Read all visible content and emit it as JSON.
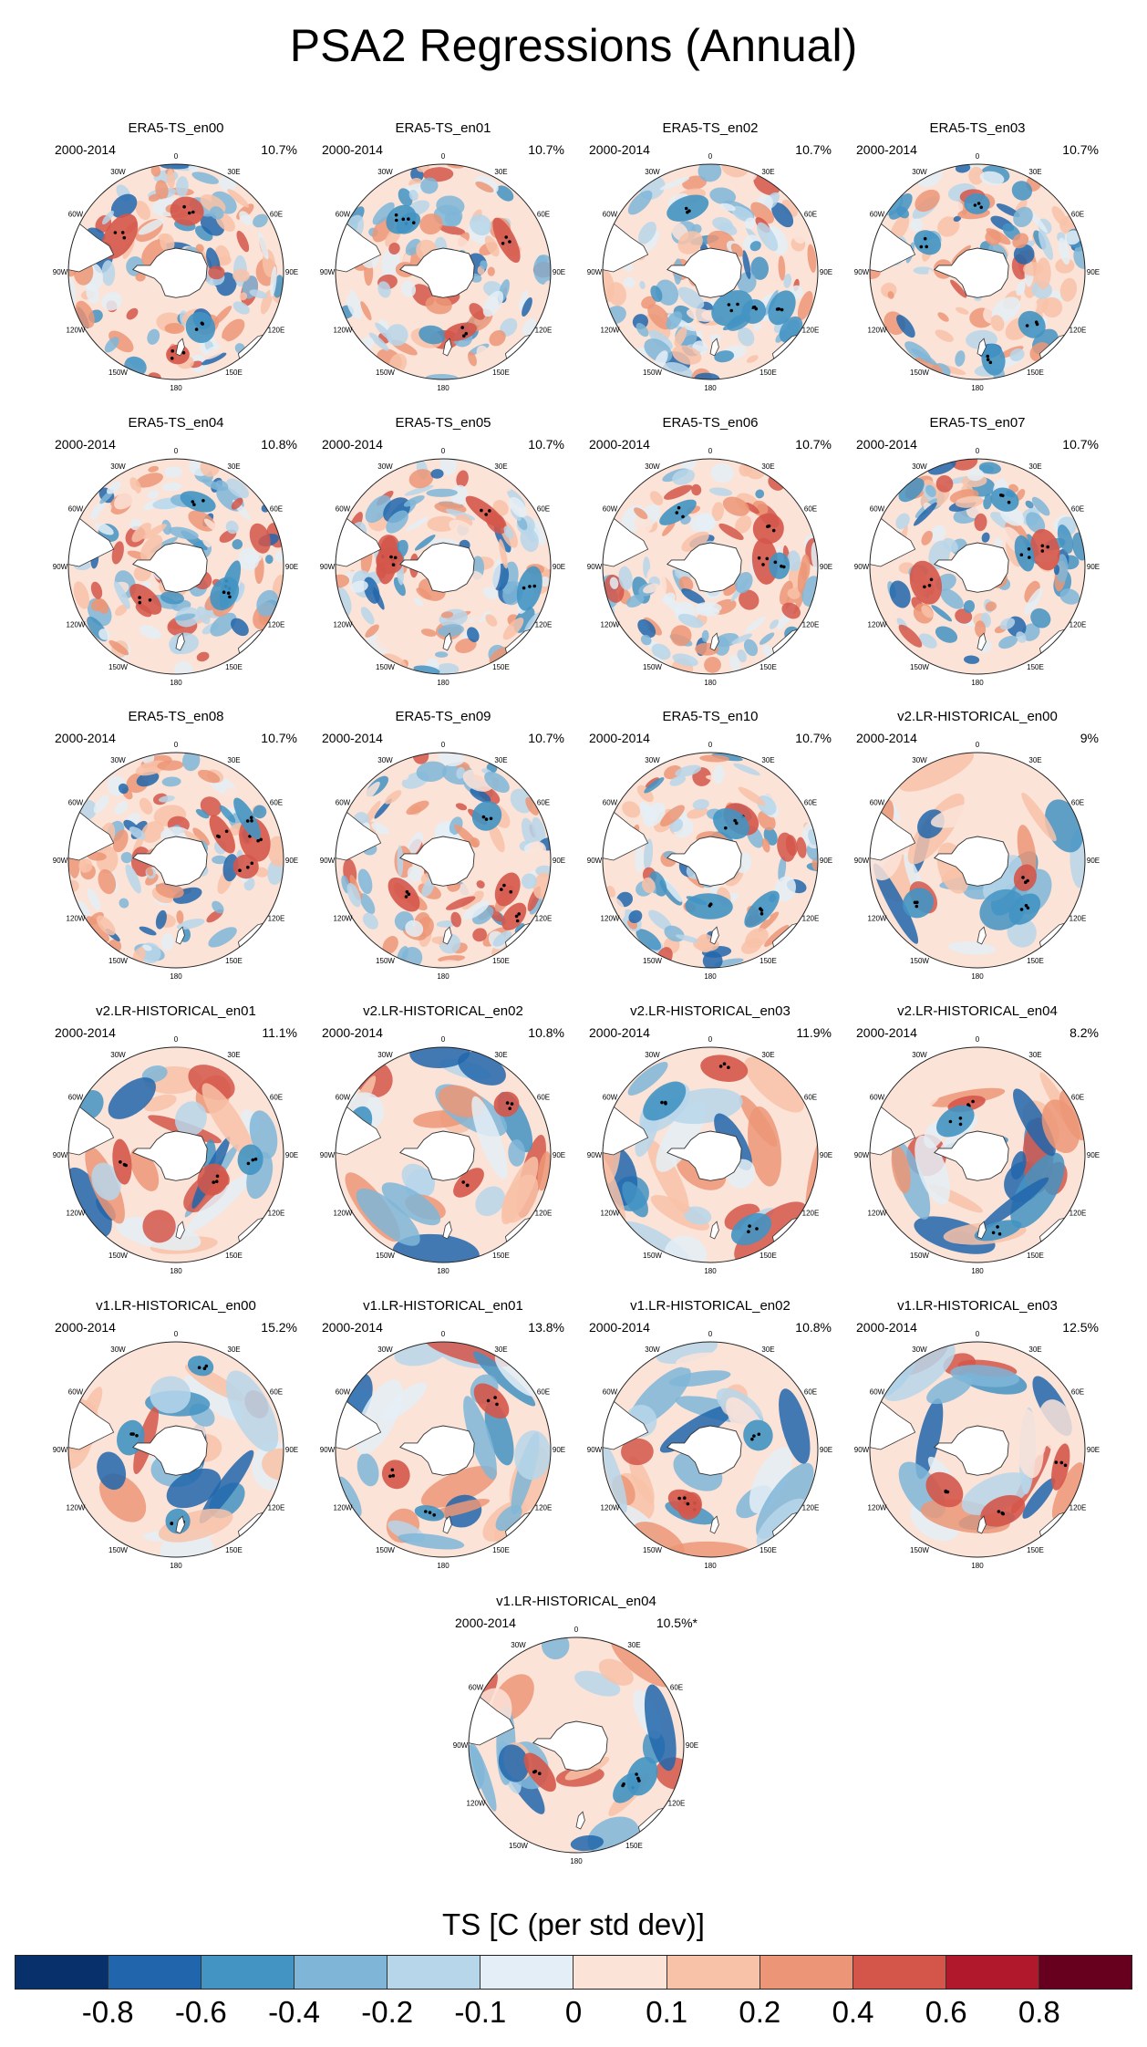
{
  "chart_data": {
    "type": "heatmap",
    "title": "PSA2 Regressions (Annual)",
    "colorbar_label": "TS [C (per std dev)]",
    "levels": [
      "-0.8",
      "-0.6",
      "-0.4",
      "-0.2",
      "-0.1",
      "0",
      "0.1",
      "0.2",
      "0.4",
      "0.6",
      "0.8"
    ],
    "colors": [
      "#08306b",
      "#2166ac",
      "#4393c3",
      "#7fb6d8",
      "#b7d6ea",
      "#e4eef6",
      "#fbe3d8",
      "#f8c2a8",
      "#ec9677",
      "#d4564a",
      "#b2182b",
      "#67001f"
    ],
    "longitude_labels": [
      "0",
      "30E",
      "60E",
      "90E",
      "120E",
      "150E",
      "180",
      "150W",
      "120W",
      "90W",
      "60W",
      "30W"
    ],
    "panels": [
      {
        "title": "ERA5-TS_en00",
        "period": "2000-2014",
        "pct": "10.7%"
      },
      {
        "title": "ERA5-TS_en01",
        "period": "2000-2014",
        "pct": "10.7%"
      },
      {
        "title": "ERA5-TS_en02",
        "period": "2000-2014",
        "pct": "10.7%"
      },
      {
        "title": "ERA5-TS_en03",
        "period": "2000-2014",
        "pct": "10.7%"
      },
      {
        "title": "ERA5-TS_en04",
        "period": "2000-2014",
        "pct": "10.8%"
      },
      {
        "title": "ERA5-TS_en05",
        "period": "2000-2014",
        "pct": "10.7%"
      },
      {
        "title": "ERA5-TS_en06",
        "period": "2000-2014",
        "pct": "10.7%"
      },
      {
        "title": "ERA5-TS_en07",
        "period": "2000-2014",
        "pct": "10.7%"
      },
      {
        "title": "ERA5-TS_en08",
        "period": "2000-2014",
        "pct": "10.7%"
      },
      {
        "title": "ERA5-TS_en09",
        "period": "2000-2014",
        "pct": "10.7%"
      },
      {
        "title": "ERA5-TS_en10",
        "period": "2000-2014",
        "pct": "10.7%"
      },
      {
        "title": "v2.LR-HISTORICAL_en00",
        "period": "2000-2014",
        "pct": "9%"
      },
      {
        "title": "v2.LR-HISTORICAL_en01",
        "period": "2000-2014",
        "pct": "11.1%"
      },
      {
        "title": "v2.LR-HISTORICAL_en02",
        "period": "2000-2014",
        "pct": "10.8%"
      },
      {
        "title": "v2.LR-HISTORICAL_en03",
        "period": "2000-2014",
        "pct": "11.9%"
      },
      {
        "title": "v2.LR-HISTORICAL_en04",
        "period": "2000-2014",
        "pct": "8.2%"
      },
      {
        "title": "v1.LR-HISTORICAL_en00",
        "period": "2000-2014",
        "pct": "15.2%"
      },
      {
        "title": "v1.LR-HISTORICAL_en01",
        "period": "2000-2014",
        "pct": "13.8%"
      },
      {
        "title": "v1.LR-HISTORICAL_en02",
        "period": "2000-2014",
        "pct": "10.8%"
      },
      {
        "title": "v1.LR-HISTORICAL_en03",
        "period": "2000-2014",
        "pct": "12.5%"
      },
      {
        "title": "v1.LR-HISTORICAL_en04",
        "period": "2000-2014",
        "pct": "10.5%*"
      }
    ]
  }
}
